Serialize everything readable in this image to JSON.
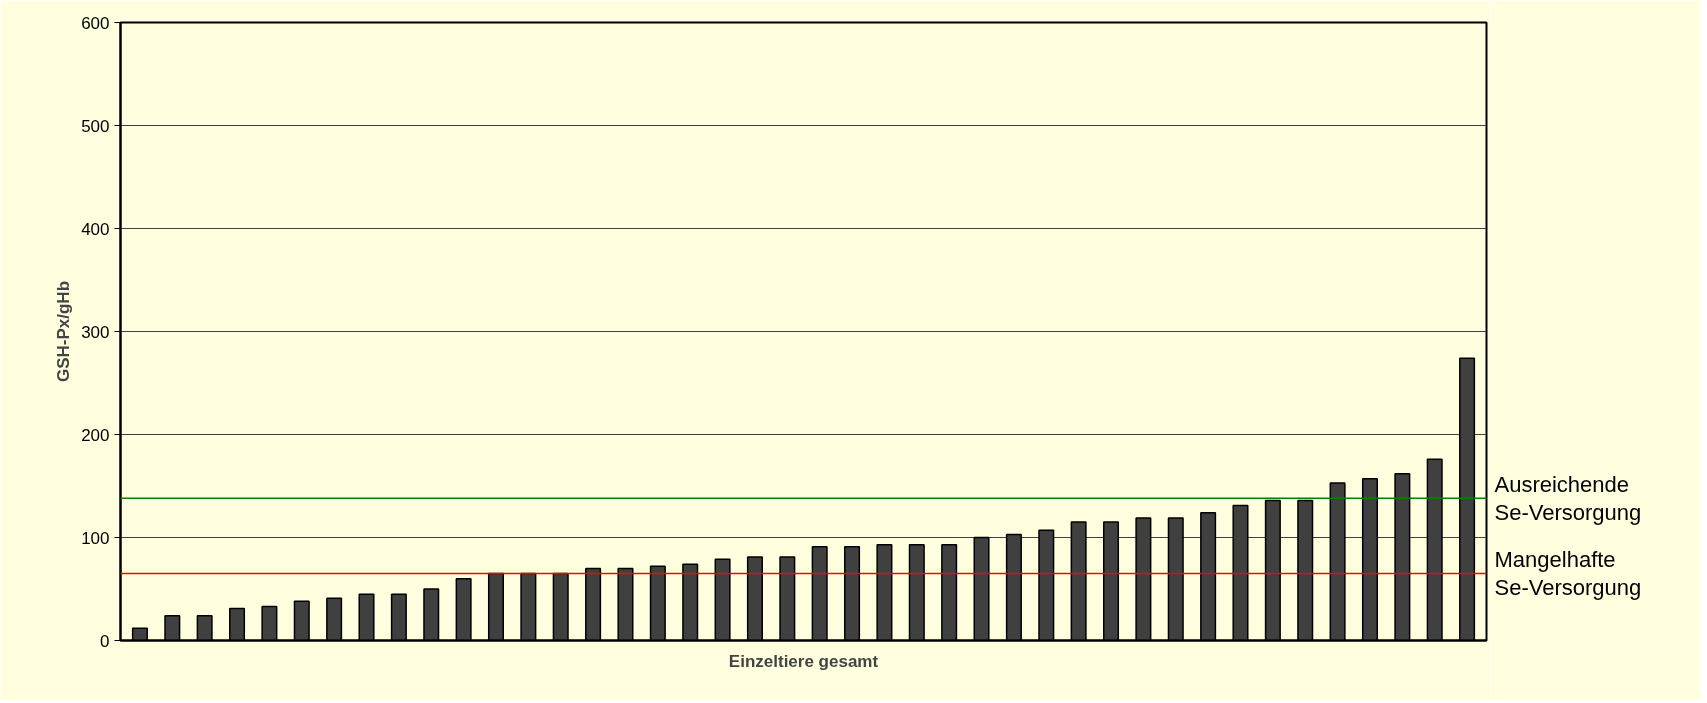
{
  "chart_data": {
    "type": "bar",
    "xlabel": "Einzeltiere gesamt",
    "ylabel": "GSH-Px/gHb",
    "categories": [
      null,
      null,
      null,
      null,
      null,
      null,
      null,
      null,
      null,
      null,
      null,
      null,
      null,
      null,
      null,
      null,
      null,
      null,
      null,
      null,
      null,
      null,
      null,
      null,
      null,
      null,
      null,
      null,
      null,
      null,
      null,
      null,
      null,
      null,
      null,
      null,
      null,
      null,
      null,
      null,
      null,
      null
    ],
    "values": [
      12,
      24,
      24,
      31,
      33,
      38,
      41,
      45,
      45,
      50,
      60,
      65,
      65,
      65,
      70,
      70,
      72,
      74,
      79,
      81,
      81,
      91,
      91,
      93,
      93,
      93,
      100,
      103,
      107,
      115,
      115,
      119,
      119,
      124,
      131,
      136,
      136,
      153,
      157,
      162,
      176,
      274
    ],
    "color": "#404040",
    "ylim": [
      0,
      600
    ],
    "yticks": [
      0,
      100,
      200,
      300,
      400,
      500,
      600
    ],
    "grid": "y",
    "ref_lines": [
      {
        "axis": "y",
        "value": 138,
        "label": "Ausreichende\nSe-Versorgung",
        "color": "#008000"
      },
      {
        "axis": "y",
        "value": 65,
        "label": "Mangelhafte\nSe-Versorgung",
        "color": "#ff0000"
      }
    ]
  }
}
